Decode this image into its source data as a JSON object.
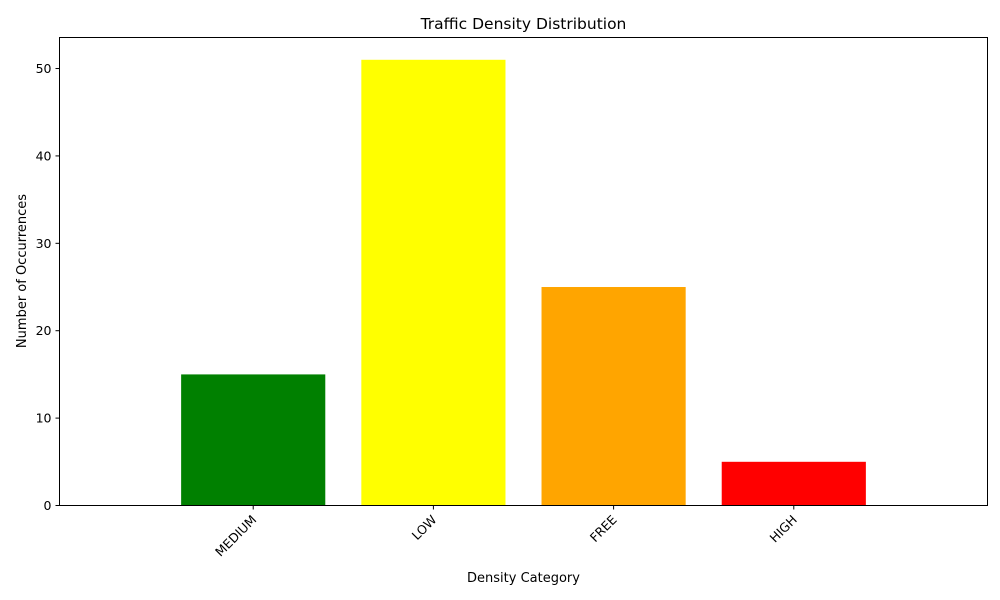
{
  "chart_data": {
    "type": "bar",
    "title": "Traffic Density Distribution",
    "xlabel": "Density Category",
    "ylabel": "Number of Occurrences",
    "categories": [
      "MEDIUM",
      "LOW",
      "FREE",
      "HIGH"
    ],
    "values": [
      15,
      51,
      25,
      5
    ],
    "colors": [
      "#008000",
      "#ffff00",
      "#ffa500",
      "#ff0000"
    ],
    "ylim": [
      0,
      53.55
    ],
    "yticks": [
      0,
      10,
      20,
      30,
      40,
      50
    ],
    "xtick_rotation": 45,
    "grid": false,
    "legend": false
  }
}
